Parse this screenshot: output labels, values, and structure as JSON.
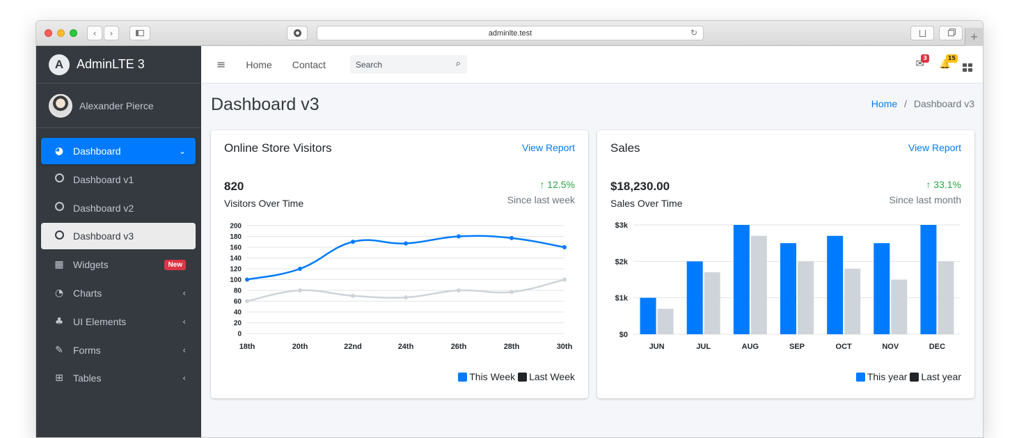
{
  "browser": {
    "url": "adminlte.test",
    "back_glyph": "‹",
    "forward_glyph": "›",
    "reload_glyph": "↻",
    "plus_glyph": "+"
  },
  "sidebar": {
    "brand": "AdminLTE 3",
    "brand_logo": "A",
    "user_name": "Alexander Pierce",
    "items": [
      {
        "label": "Dashboard",
        "icon": "tachometer-icon",
        "glyph": "◕",
        "state": "active",
        "trail": "chevron-down",
        "trail_glyph": "⌄"
      },
      {
        "label": "Dashboard v1",
        "icon": "circle-icon",
        "glyph": "",
        "state": "normal",
        "trail": "",
        "trail_glyph": ""
      },
      {
        "label": "Dashboard v2",
        "icon": "circle-icon",
        "glyph": "",
        "state": "normal",
        "trail": "",
        "trail_glyph": ""
      },
      {
        "label": "Dashboard v3",
        "icon": "circle-icon",
        "glyph": "",
        "state": "current",
        "trail": "",
        "trail_glyph": ""
      },
      {
        "label": "Widgets",
        "icon": "grid-icon",
        "glyph": "▦",
        "state": "normal",
        "trail": "badge",
        "trail_glyph": "New"
      },
      {
        "label": "Charts",
        "icon": "pie-chart-icon",
        "glyph": "◔",
        "state": "normal",
        "trail": "chevron-left",
        "trail_glyph": "‹"
      },
      {
        "label": "UI Elements",
        "icon": "tree-icon",
        "glyph": "♣",
        "state": "normal",
        "trail": "chevron-left",
        "trail_glyph": "‹"
      },
      {
        "label": "Forms",
        "icon": "edit-icon",
        "glyph": "✎",
        "state": "normal",
        "trail": "chevron-left",
        "trail_glyph": "‹"
      },
      {
        "label": "Tables",
        "icon": "table-icon",
        "glyph": "⊞",
        "state": "normal",
        "trail": "chevron-left",
        "trail_glyph": "‹"
      }
    ]
  },
  "topnav": {
    "menu_glyph": "≡",
    "home": "Home",
    "contact": "Contact",
    "search_placeholder": "Search",
    "search_glyph": "⌕",
    "messages_glyph": "✉",
    "messages_count": "3",
    "notifications_glyph": "🔔",
    "notifications_count": "15",
    "apps_glyph": "▪▪"
  },
  "page": {
    "title": "Dashboard v3",
    "breadcrumb_home": "Home",
    "breadcrumb_sep": "/",
    "breadcrumb_current": "Dashboard v3"
  },
  "visitors_card": {
    "title": "Online Store Visitors",
    "link": "View Report",
    "value": "820",
    "subtitle": "Visitors Over Time",
    "change": "↑ 12.5%",
    "change_label": "Since last week"
  },
  "sales_card": {
    "title": "Sales",
    "link": "View Report",
    "value": "$18,230.00",
    "subtitle": "Sales Over Time",
    "change": "↑ 33.1%",
    "change_label": "Since last month"
  },
  "colors": {
    "primary": "#007bff",
    "secondary": "#ced4da",
    "success": "#28a745",
    "sidebar": "#343a40",
    "legend_dark": "#212529"
  },
  "chart_data": [
    {
      "type": "line",
      "title": "",
      "categories": [
        "18th",
        "20th",
        "22nd",
        "24th",
        "26th",
        "28th",
        "30th"
      ],
      "ylim": [
        0,
        200
      ],
      "yticks": [
        0,
        20,
        40,
        60,
        80,
        100,
        120,
        140,
        160,
        180,
        200
      ],
      "series": [
        {
          "name": "This Week",
          "color": "#007bff",
          "values": [
            100,
            120,
            170,
            167,
            180,
            177,
            160
          ]
        },
        {
          "name": "Last Week",
          "color": "#ced4da",
          "values": [
            60,
            80,
            70,
            67,
            80,
            77,
            100
          ]
        }
      ],
      "grid": true,
      "legend": "bottom-right"
    },
    {
      "type": "bar",
      "title": "",
      "categories": [
        "JUN",
        "JUL",
        "AUG",
        "SEP",
        "OCT",
        "NOV",
        "DEC"
      ],
      "ylim": [
        0,
        3000
      ],
      "yticks": [
        {
          "v": 0,
          "label": "$0"
        },
        {
          "v": 1000,
          "label": "$1k"
        },
        {
          "v": 2000,
          "label": "$2k"
        },
        {
          "v": 3000,
          "label": "$3k"
        }
      ],
      "series": [
        {
          "name": "This year",
          "color": "#007bff",
          "values": [
            1000,
            2000,
            3000,
            2500,
            2700,
            2500,
            3000
          ]
        },
        {
          "name": "Last year",
          "color": "#ced4da",
          "values": [
            700,
            1700,
            2700,
            2000,
            1800,
            1500,
            2000
          ]
        }
      ],
      "grid": true,
      "legend": "bottom-right"
    }
  ]
}
